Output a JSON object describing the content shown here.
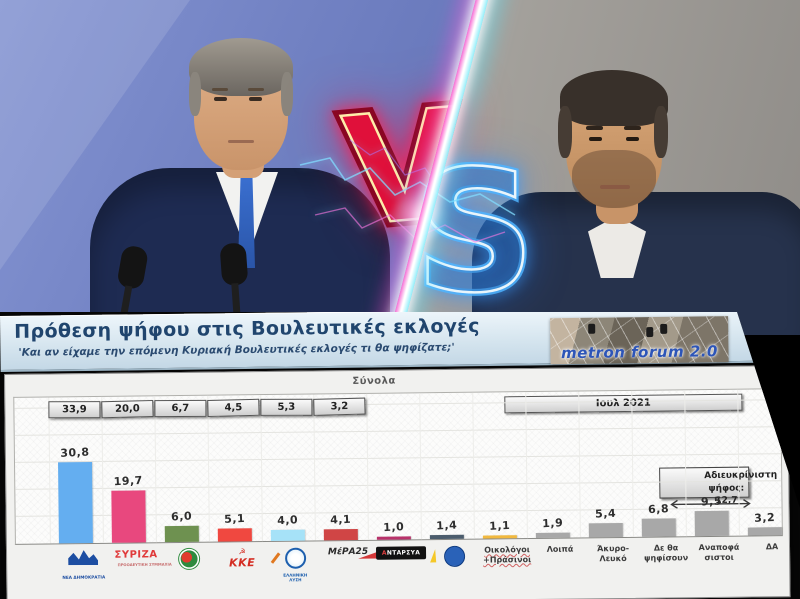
{
  "versus": {
    "left_letter": "V",
    "right_letter": "S",
    "v_color": "#e0103a",
    "s_color": "#d8e8f0"
  },
  "header": {
    "title": "Πρόθεση ψήφου στις Βουλευτικές εκλογές",
    "subtitle": "'Και αν είχαμε την επόμενη Κυριακή Βουλευτικές εκλογές τι θα ψηφίζατε;'",
    "logo_text": "metron forum 2.0"
  },
  "chart_data": {
    "type": "bar",
    "title": "Σύνολα",
    "period_label": "Ιουλ 2021",
    "top_values": [
      "33,9",
      "20,0",
      "6,7",
      "4,5",
      "5,3",
      "3,2"
    ],
    "annotation": {
      "line1": "Αδιευκρίνιστη",
      "line2": "ψήφος: 12,7"
    },
    "categories": [
      "ΝΔ",
      "ΣΥΡΙΖΑ",
      "ΚΙΝΑΛ",
      "ΚΚΕ",
      "Ελληνική Λύση",
      "ΜέΡΑ25",
      "ΑΝΤΑΡΣΥΑ",
      "Πλεύση Ελευθερίας",
      "Οικολόγοι +Πράσινοι",
      "Λοιπά",
      "Άκυρο-Λευκό",
      "Δε θα ψηφίσουν",
      "Αναποφάσιστοι",
      "ΔΑ"
    ],
    "values": [
      30.8,
      19.7,
      6.0,
      5.1,
      4.0,
      4.1,
      1.0,
      1.4,
      1.1,
      1.9,
      5.4,
      6.8,
      9.5,
      3.2
    ],
    "value_labels": [
      "30,8",
      "19,7",
      "6,0",
      "5,1",
      "4,0",
      "4,1",
      "1,0",
      "1,4",
      "1,1",
      "1,9",
      "5,4",
      "6,8",
      "9,5",
      "3,2"
    ],
    "colors": [
      "#64aef0",
      "#e8487e",
      "#6e9150",
      "#f04840",
      "#a6e2f8",
      "#d04545",
      "#b8326a",
      "#4c5d6d",
      "#f2b93e",
      "#a8a8a8",
      "#a8a8a8",
      "#a8a8a8",
      "#a8a8a8",
      "#a8a8a8"
    ],
    "ylim": [
      0,
      38
    ],
    "grid": "on",
    "legend": "none"
  },
  "parties": [
    {
      "id": "nd",
      "label": "ΝΕΑ ΔΗΜΟΚΡΑΤΙΑ"
    },
    {
      "id": "syriza",
      "label": "ΣΥΡΙΖΑ",
      "sublabel": "ΠΡΟΟΔΕΥΤΙΚΗ ΣΥΜΜΑΧΙΑ"
    },
    {
      "id": "kinal",
      "label": ""
    },
    {
      "id": "kke",
      "label": "ΚΚΕ",
      "symbol": "☭"
    },
    {
      "id": "elliniki-lysi",
      "label": "ΕΛΛΗΝΙΚΗ\nΛΥΣΗ"
    },
    {
      "id": "mera25",
      "label": "ΜέΡΑ25"
    },
    {
      "id": "antarsya",
      "label": "ΑΝΤΑΡΣΥΑ"
    },
    {
      "id": "plefsi-eleftherias",
      "label": ""
    },
    {
      "id": "oikologoi-prasinoi",
      "text_lines": [
        "Οικολόγοι",
        "+Πράσινοι"
      ],
      "underline": true
    },
    {
      "id": "loipa",
      "text_lines": [
        "Λοιπά"
      ]
    },
    {
      "id": "akyro-leyko",
      "text_lines": [
        "Άκυρο-",
        "Λευκό"
      ]
    },
    {
      "id": "de-tha-psifisoun",
      "text_lines": [
        "Δε θα",
        "ψηφίσουν"
      ]
    },
    {
      "id": "anapofasistoi",
      "text_lines": [
        "Αναποφά",
        "σιστοι"
      ]
    },
    {
      "id": "da",
      "text_lines": [
        "ΔΑ"
      ]
    }
  ]
}
